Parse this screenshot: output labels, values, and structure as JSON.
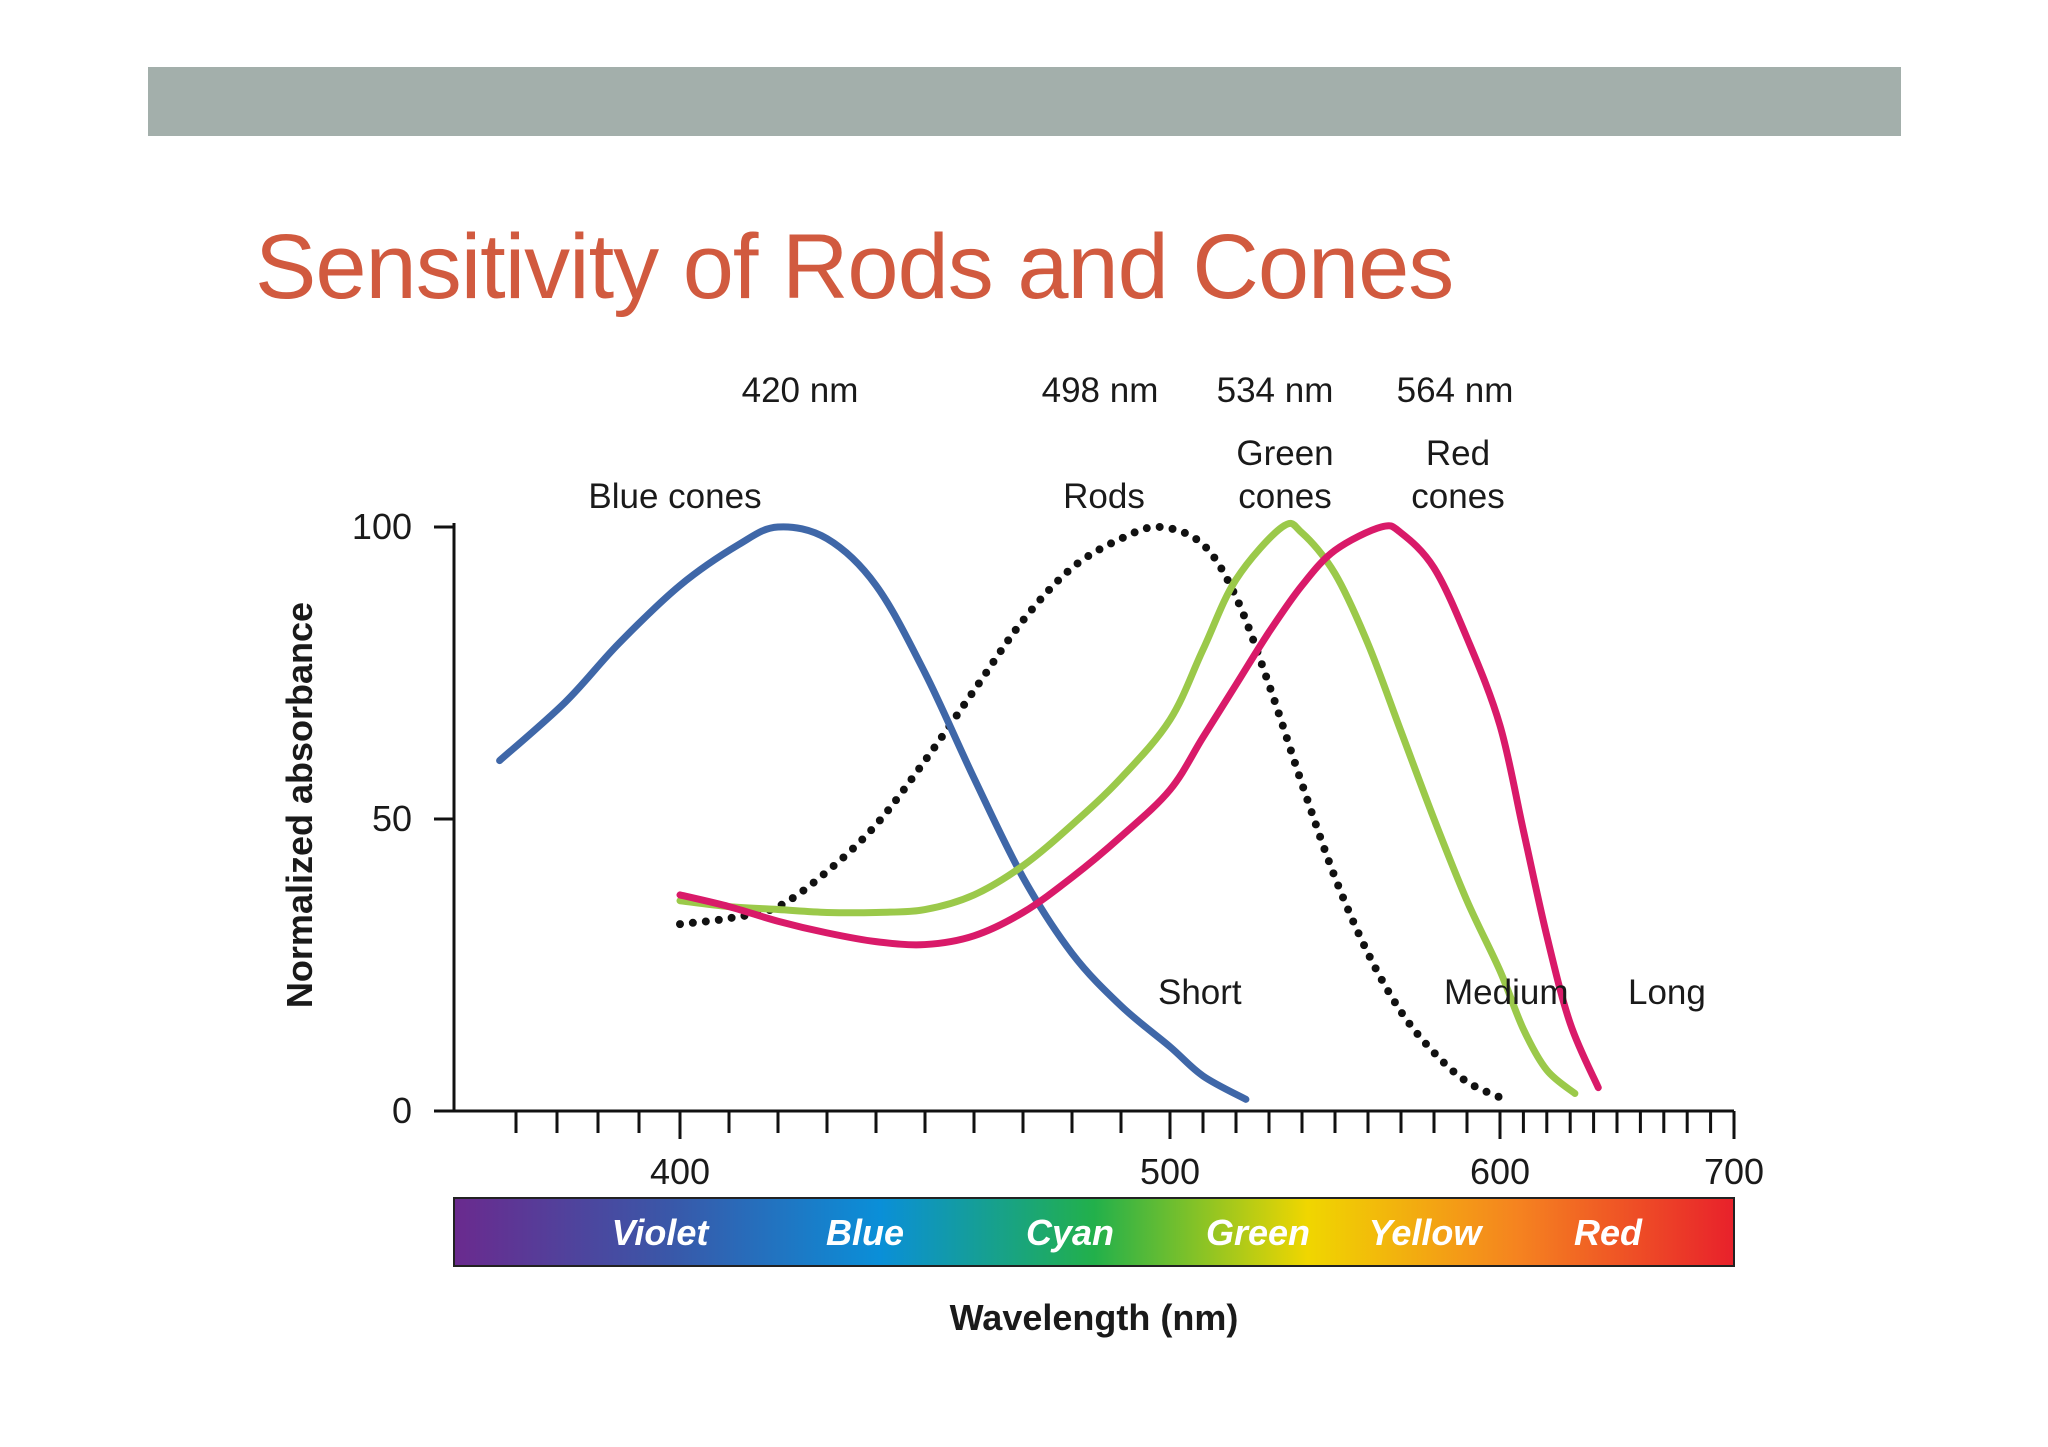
{
  "slide": {
    "title": "Sensitivity of Rods and Cones"
  },
  "chart_data": {
    "type": "line",
    "xlabel": "Wavelength (nm)",
    "ylabel": "Normalized absorbance",
    "xlim": [
      350,
      700
    ],
    "ylim": [
      0,
      100
    ],
    "x_ticks": [
      400,
      500,
      600,
      700
    ],
    "y_ticks": [
      0,
      50,
      100
    ],
    "series": [
      {
        "name": "Blue cones",
        "band_label": "Short",
        "peak_label": "420 nm",
        "color": "#3f67a8",
        "style": "solid",
        "x": [
          356,
          372,
          385,
          400,
          412,
          420,
          430,
          440,
          450,
          460,
          470,
          480,
          490,
          500,
          510,
          523
        ],
        "y": [
          60,
          70,
          80,
          90,
          97,
          100,
          98,
          90,
          75,
          57,
          40,
          27,
          18,
          11,
          6,
          2
        ]
      },
      {
        "name": "Rods",
        "peak_label": "498 nm",
        "color": "#111111",
        "style": "dotted",
        "x": [
          400,
          410,
          420,
          430,
          440,
          450,
          460,
          470,
          480,
          490,
          498,
          510,
          520,
          530,
          540,
          550,
          560,
          570,
          580,
          590,
          602
        ],
        "y": [
          32,
          33,
          35,
          41,
          49,
          60,
          72,
          84,
          93,
          98,
          100,
          97,
          88,
          73,
          56,
          40,
          27,
          17,
          10,
          5,
          2
        ]
      },
      {
        "name": "Green cones",
        "band_label": "Medium",
        "peak_label": "534 nm",
        "color": "#9bc94a",
        "style": "solid",
        "x": [
          400,
          410,
          420,
          430,
          440,
          450,
          460,
          470,
          480,
          490,
          500,
          510,
          520,
          534,
          540,
          550,
          560,
          570,
          580,
          590,
          600,
          610,
          620,
          632
        ],
        "y": [
          36,
          35,
          34.5,
          34,
          34,
          34.5,
          37,
          42,
          49,
          57,
          67,
          79,
          91,
          100,
          99,
          92,
          80,
          65,
          50,
          36,
          24,
          14,
          7,
          3
        ]
      },
      {
        "name": "Red cones",
        "band_label": "Long",
        "peak_label": "564 nm",
        "color": "#d91a69",
        "style": "solid",
        "x": [
          400,
          410,
          420,
          430,
          440,
          450,
          460,
          470,
          480,
          490,
          500,
          510,
          520,
          530,
          540,
          550,
          564,
          570,
          580,
          590,
          600,
          610,
          620,
          630,
          642
        ],
        "y": [
          37,
          35,
          32.5,
          30.5,
          29,
          28.5,
          30,
          34,
          40,
          47,
          55,
          64,
          73,
          82,
          90,
          96,
          100,
          99,
          93,
          81,
          66,
          48,
          30,
          15,
          4
        ]
      }
    ],
    "annotations": {
      "peak_labels": [
        {
          "text": "420 nm",
          "x": 420
        },
        {
          "text": "498 nm",
          "x": 498
        },
        {
          "text": "534 nm",
          "x": 534
        },
        {
          "text": "564 nm",
          "x": 564
        }
      ],
      "curve_labels": [
        {
          "lines": [
            "Blue cones"
          ],
          "x": 400
        },
        {
          "lines": [
            "Rods"
          ],
          "x": 498
        },
        {
          "lines": [
            "Green",
            "cones"
          ],
          "x": 537
        },
        {
          "lines": [
            "Red",
            "cones"
          ],
          "x": 572
        }
      ],
      "band_labels": [
        {
          "text": "Short",
          "x": 510,
          "y": 20
        },
        {
          "text": "Medium",
          "x": 600,
          "y": 20
        },
        {
          "text": "Long",
          "x": 645,
          "y": 20
        }
      ]
    },
    "spectrum": {
      "labels": [
        "Violet",
        "Blue",
        "Cyan",
        "Green",
        "Yellow",
        "Red"
      ],
      "label_x": [
        395,
        440,
        482,
        520,
        560,
        605
      ],
      "colors": [
        "#6a2a8e",
        "#3a57a8",
        "#0a8fd8",
        "#22b04b",
        "#f0d600",
        "#f58220",
        "#e8212b"
      ]
    }
  }
}
